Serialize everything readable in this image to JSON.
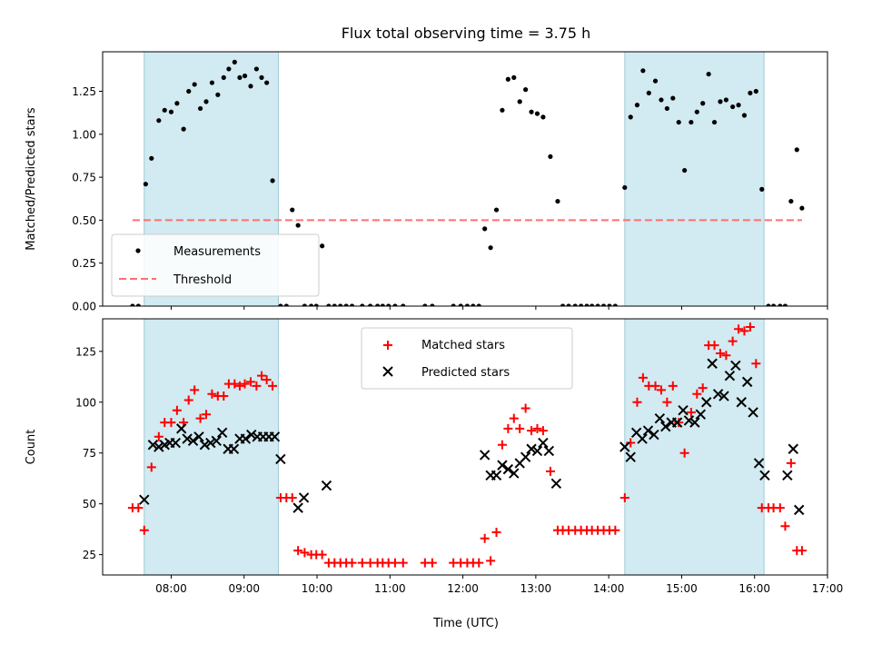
{
  "figure": {
    "title": "Flux total observing time = 3.75 h",
    "xlabel": "Time (UTC)"
  },
  "chart_data": [
    {
      "type": "scatter",
      "ylabel": "Matched/Predicted stars",
      "ylim": [
        0,
        1.48
      ],
      "yticks": [
        0,
        0.25,
        0.5,
        0.75,
        1.0,
        1.25
      ],
      "ytick_labels": [
        "0.00",
        "0.25",
        "0.50",
        "0.75",
        "1.00",
        "1.25"
      ],
      "xlim": [
        7.06,
        17.0
      ],
      "xticks": [
        7.0,
        8.0,
        9.0,
        10.0,
        11.0,
        12.0,
        13.0,
        14.0,
        15.0,
        16.0,
        17.0
      ],
      "shaded_intervals": [
        [
          7.63,
          9.47
        ],
        [
          14.22,
          16.13
        ]
      ],
      "shade_color": "#add8e6",
      "legend_position": "lower-left",
      "series": [
        {
          "name": "Measurements",
          "marker": "dot",
          "color": "#000000",
          "x": [
            7.47,
            7.55,
            7.65,
            7.73,
            7.83,
            7.91,
            8.0,
            8.08,
            8.17,
            8.24,
            8.32,
            8.4,
            8.48,
            8.56,
            8.64,
            8.72,
            8.79,
            8.87,
            8.94,
            9.01,
            9.09,
            9.17,
            9.24,
            9.31,
            9.39,
            9.5,
            9.58,
            9.66,
            9.74,
            9.83,
            9.92,
            9.99,
            10.07,
            10.16,
            10.24,
            10.32,
            10.4,
            10.48,
            10.62,
            10.73,
            10.83,
            10.9,
            10.98,
            11.07,
            11.18,
            11.48,
            11.58,
            11.87,
            11.97,
            12.06,
            12.14,
            12.22,
            12.3,
            12.38,
            12.46,
            12.54,
            12.62,
            12.7,
            12.78,
            12.86,
            12.94,
            13.02,
            13.1,
            13.2,
            13.3,
            13.37,
            13.45,
            13.54,
            13.62,
            13.7,
            13.77,
            13.85,
            13.93,
            14.01,
            14.09,
            14.22,
            14.3,
            14.39,
            14.47,
            14.55,
            14.64,
            14.72,
            14.8,
            14.88,
            14.96,
            15.04,
            15.13,
            15.21,
            15.29,
            15.37,
            15.45,
            15.53,
            15.61,
            15.7,
            15.78,
            15.86,
            15.94,
            16.02,
            16.1,
            16.19,
            16.26,
            16.35,
            16.42,
            16.5,
            16.58,
            16.65
          ],
          "y": [
            0,
            0,
            0.71,
            0.86,
            1.08,
            1.14,
            1.13,
            1.18,
            1.03,
            1.25,
            1.29,
            1.15,
            1.19,
            1.3,
            1.23,
            1.33,
            1.38,
            1.42,
            1.33,
            1.34,
            1.28,
            1.38,
            1.33,
            1.3,
            0.73,
            0,
            0,
            0.56,
            0.47,
            0,
            0,
            0,
            0.35,
            0,
            0,
            0,
            0,
            0,
            0,
            0,
            0,
            0,
            0,
            0,
            0,
            0,
            0,
            0,
            0,
            0,
            0,
            0,
            0.45,
            0.34,
            0.56,
            1.14,
            1.32,
            1.33,
            1.19,
            1.26,
            1.13,
            1.12,
            1.1,
            0.87,
            0.61,
            0,
            0,
            0,
            0,
            0,
            0,
            0,
            0,
            0,
            0,
            0.69,
            1.1,
            1.17,
            1.37,
            1.24,
            1.31,
            1.2,
            1.15,
            1.21,
            1.07,
            0.79,
            1.07,
            1.13,
            1.18,
            1.35,
            1.07,
            1.19,
            1.2,
            1.16,
            1.17,
            1.11,
            1.24,
            1.25,
            0.68,
            0,
            0,
            0,
            0,
            0.61,
            0.91,
            0.57
          ]
        },
        {
          "name": "Threshold",
          "style": "dashed",
          "color": "#ff6f6f",
          "x": [
            7.47,
            16.65
          ],
          "y": [
            0.5,
            0.5
          ]
        }
      ]
    },
    {
      "type": "scatter",
      "ylabel": "Count",
      "ylim": [
        15,
        141
      ],
      "yticks": [
        25,
        50,
        75,
        100,
        125
      ],
      "ytick_labels": [
        "25",
        "50",
        "75",
        "100",
        "125"
      ],
      "xlim": [
        7.06,
        17.0
      ],
      "xticks": [
        8.0,
        9.0,
        10.0,
        11.0,
        12.0,
        13.0,
        14.0,
        15.0,
        16.0,
        17.0
      ],
      "xtick_labels": [
        "08:00",
        "09:00",
        "10:00",
        "11:00",
        "12:00",
        "13:00",
        "14:00",
        "15:00",
        "16:00",
        "17:00"
      ],
      "shaded_intervals": [
        [
          7.63,
          9.47
        ],
        [
          14.22,
          16.13
        ]
      ],
      "shade_color": "#add8e6",
      "legend_position": "upper-center",
      "series": [
        {
          "name": "Matched stars",
          "marker": "plus",
          "color": "#ff0000",
          "x": [
            7.47,
            7.55,
            7.63,
            7.73,
            7.83,
            7.91,
            8.0,
            8.08,
            8.17,
            8.24,
            8.32,
            8.4,
            8.48,
            8.56,
            8.64,
            8.72,
            8.79,
            8.87,
            8.94,
            9.01,
            9.09,
            9.17,
            9.24,
            9.31,
            9.39,
            9.5,
            9.58,
            9.66,
            9.74,
            9.83,
            9.92,
            9.99,
            10.07,
            10.16,
            10.24,
            10.32,
            10.4,
            10.48,
            10.62,
            10.73,
            10.83,
            10.9,
            10.98,
            11.07,
            11.18,
            11.48,
            11.58,
            11.87,
            11.97,
            12.06,
            12.14,
            12.22,
            12.3,
            12.38,
            12.46,
            12.54,
            12.62,
            12.7,
            12.78,
            12.86,
            12.94,
            13.02,
            13.1,
            13.2,
            13.3,
            13.37,
            13.45,
            13.54,
            13.62,
            13.7,
            13.77,
            13.85,
            13.93,
            14.01,
            14.09,
            14.22,
            14.3,
            14.39,
            14.47,
            14.55,
            14.64,
            14.72,
            14.8,
            14.88,
            14.96,
            15.04,
            15.13,
            15.21,
            15.29,
            15.37,
            15.45,
            15.53,
            15.61,
            15.7,
            15.78,
            15.86,
            15.94,
            16.02,
            16.1,
            16.19,
            16.26,
            16.35,
            16.42,
            16.5,
            16.58,
            16.65
          ],
          "y": [
            48,
            48,
            37,
            68,
            83,
            90,
            90,
            96,
            90,
            101,
            106,
            92,
            94,
            104,
            103,
            103,
            109,
            109,
            108,
            109,
            110,
            108,
            113,
            111,
            108,
            53,
            53,
            53,
            27,
            26,
            25,
            25,
            25,
            21,
            21,
            21,
            21,
            21,
            21,
            21,
            21,
            21,
            21,
            21,
            21,
            21,
            21,
            21,
            21,
            21,
            21,
            21,
            33,
            22,
            36,
            79,
            87,
            92,
            87,
            97,
            86,
            87,
            86,
            66,
            37,
            37,
            37,
            37,
            37,
            37,
            37,
            37,
            37,
            37,
            37,
            53,
            80,
            100,
            112,
            108,
            108,
            106,
            100,
            108,
            90,
            75,
            95,
            104,
            107,
            128,
            128,
            124,
            123,
            130,
            136,
            135,
            137,
            119,
            48,
            48,
            48,
            48,
            39,
            70,
            27,
            27
          ]
        },
        {
          "name": "Predicted stars",
          "marker": "x",
          "color": "#000000",
          "x": [
            7.63,
            7.75,
            7.83,
            7.91,
            7.98,
            8.06,
            8.14,
            8.22,
            8.3,
            8.38,
            8.46,
            8.54,
            8.62,
            8.7,
            8.78,
            8.86,
            8.94,
            9.02,
            9.1,
            9.18,
            9.26,
            9.34,
            9.42,
            9.5,
            9.74,
            9.82,
            10.13,
            12.3,
            12.38,
            12.46,
            12.54,
            12.62,
            12.7,
            12.78,
            12.86,
            12.94,
            13.02,
            13.1,
            13.18,
            13.28,
            14.22,
            14.3,
            14.38,
            14.46,
            14.54,
            14.62,
            14.7,
            14.78,
            14.86,
            14.94,
            15.02,
            15.1,
            15.18,
            15.26,
            15.34,
            15.42,
            15.5,
            15.58,
            15.66,
            15.74,
            15.82,
            15.9,
            15.98,
            16.06,
            16.14,
            16.45,
            16.53,
            16.61
          ],
          "y": [
            52,
            79,
            78,
            79,
            80,
            80,
            87,
            82,
            81,
            83,
            79,
            80,
            81,
            85,
            77,
            77,
            82,
            82,
            84,
            83,
            83,
            83,
            83,
            72,
            48,
            53,
            59,
            74,
            64,
            64,
            69,
            67,
            65,
            70,
            73,
            77,
            76,
            80,
            76,
            60,
            78,
            73,
            85,
            82,
            86,
            84,
            92,
            88,
            90,
            90,
            96,
            91,
            90,
            94,
            100,
            119,
            104,
            103,
            113,
            118,
            100,
            110,
            95,
            70,
            64,
            64,
            77,
            47
          ]
        }
      ]
    }
  ]
}
